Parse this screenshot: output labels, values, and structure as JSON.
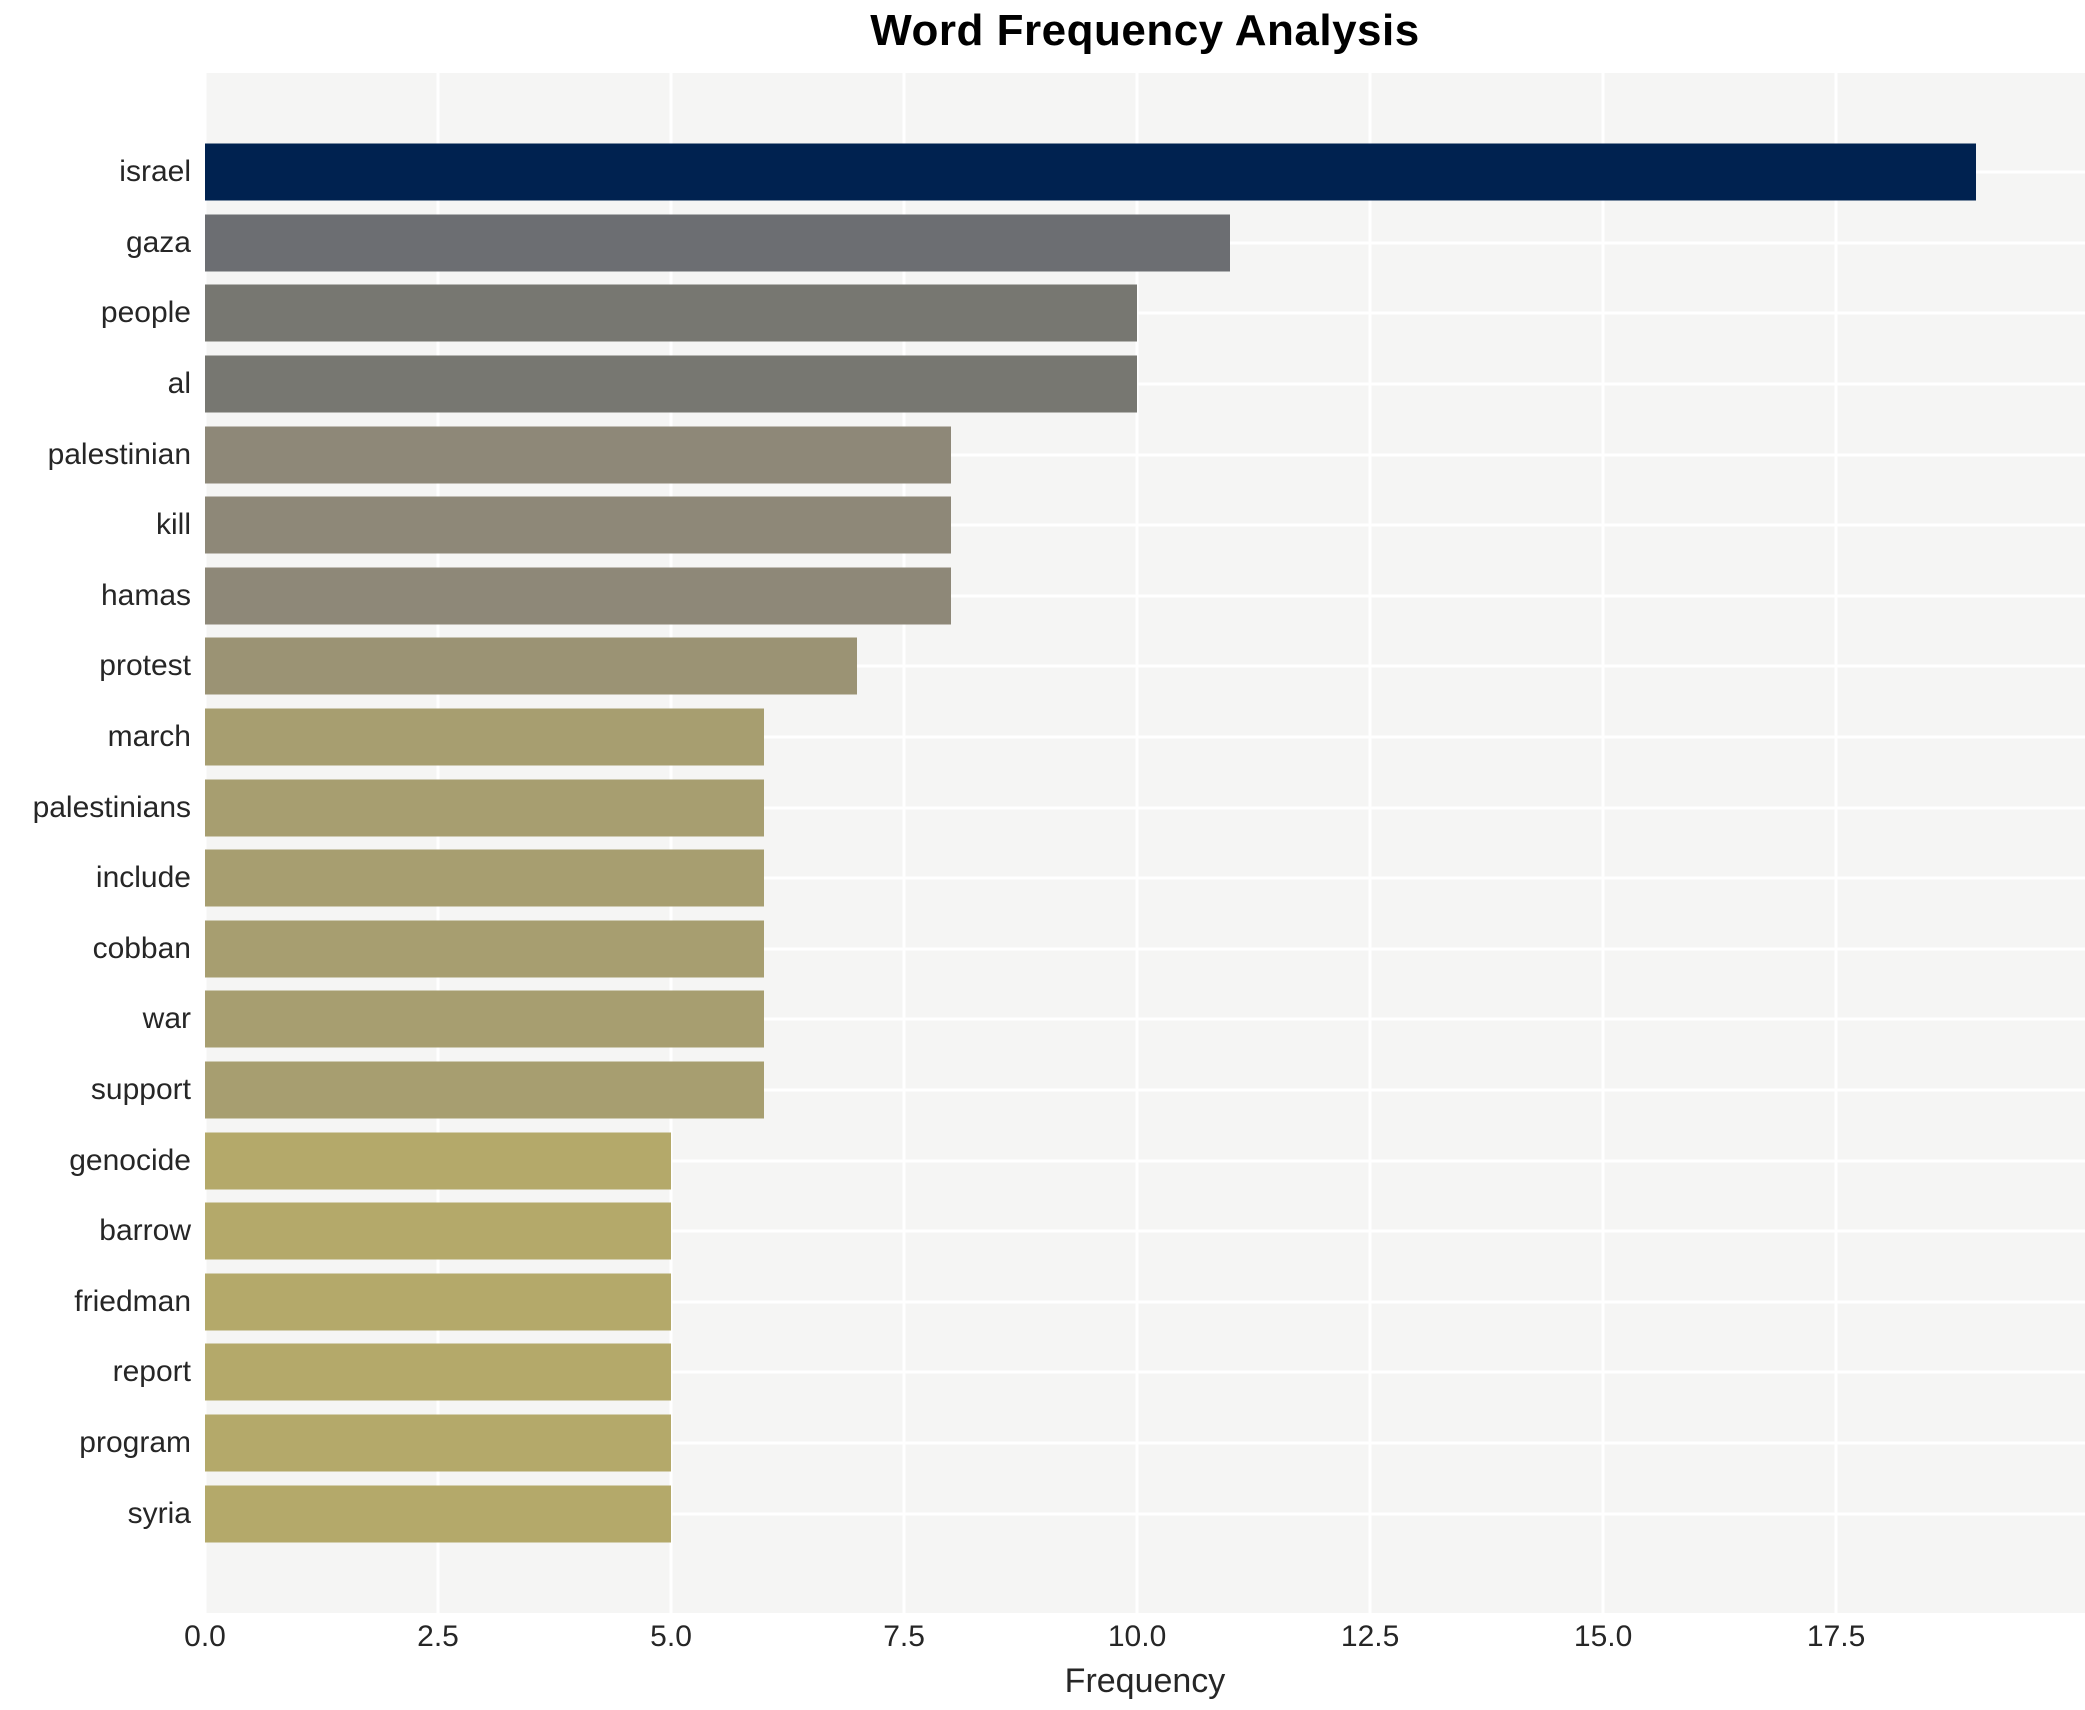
{
  "title": "Word Frequency Analysis",
  "chart_data": {
    "type": "bar",
    "orientation": "horizontal",
    "title": "Word Frequency Analysis",
    "xlabel": "Frequency",
    "ylabel": "",
    "categories": [
      "israel",
      "gaza",
      "people",
      "al",
      "palestinian",
      "kill",
      "hamas",
      "protest",
      "march",
      "palestinians",
      "include",
      "cobban",
      "war",
      "support",
      "genocide",
      "barrow",
      "friedman",
      "report",
      "program",
      "syria"
    ],
    "values": [
      19,
      11,
      10,
      10,
      8,
      8,
      8,
      7,
      6,
      6,
      6,
      6,
      6,
      6,
      5,
      5,
      5,
      5,
      5,
      5
    ],
    "bar_colors": [
      "#002250",
      "#6c6e72",
      "#777771",
      "#777771",
      "#8e8878",
      "#8e8878",
      "#8e8878",
      "#9b9374",
      "#a79e70",
      "#a79e70",
      "#a79e70",
      "#a79e70",
      "#a79e70",
      "#a79e70",
      "#b4a96a",
      "#b4a96a",
      "#b4a96a",
      "#b4a96a",
      "#b4a96a",
      "#b4a96a"
    ],
    "xticks": [
      0.0,
      2.5,
      5.0,
      7.5,
      10.0,
      12.5,
      15.0,
      17.5
    ],
    "xtick_labels": [
      "0.0",
      "2.5",
      "5.0",
      "7.5",
      "10.0",
      "12.5",
      "15.0",
      "17.5"
    ],
    "xlim": [
      0,
      20.17
    ],
    "grid": true,
    "legend": "none",
    "panel_bg": "#f5f5f4",
    "grid_color": "#ffffff"
  }
}
